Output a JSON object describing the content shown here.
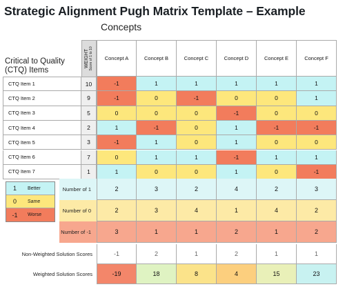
{
  "title": "Strategic Alignment Pugh Matrix Template – Example",
  "concepts_label": "Concepts",
  "ctq_label": "Critical to Quality (CTQ) Items",
  "weight_header": {
    "line1": "WEIGHT",
    "line2": "Score of 1 to 10"
  },
  "concepts": [
    "Concept A",
    "Concept B",
    "Concept C",
    "Concept D",
    "Concept E",
    "Concept F"
  ],
  "items": [
    {
      "label": "CTQ Item 1",
      "weight": "10",
      "scores": [
        "-1",
        "1",
        "1",
        "1",
        "1",
        "1"
      ]
    },
    {
      "label": "CTQ Item 2",
      "weight": "9",
      "scores": [
        "-1",
        "0",
        "-1",
        "0",
        "0",
        "1"
      ]
    },
    {
      "label": "CTQ Item 3",
      "weight": "5",
      "scores": [
        "0",
        "0",
        "0",
        "-1",
        "0",
        "0"
      ]
    },
    {
      "label": "CTQ Item 4",
      "weight": "2",
      "scores": [
        "1",
        "-1",
        "0",
        "1",
        "-1",
        "-1"
      ]
    },
    {
      "label": "CTQ Item 5",
      "weight": "3",
      "scores": [
        "-1",
        "1",
        "0",
        "1",
        "0",
        "0"
      ]
    },
    {
      "label": "CTQ Item 6",
      "weight": "7",
      "scores": [
        "0",
        "1",
        "1",
        "-1",
        "1",
        "1"
      ]
    },
    {
      "label": "CTQ Item 7",
      "weight": "1",
      "scores": [
        "1",
        "0",
        "0",
        "1",
        "0",
        "-1"
      ]
    }
  ],
  "legend": [
    {
      "value": "1",
      "label": "Better"
    },
    {
      "value": "0",
      "label": "Same"
    },
    {
      "value": "-1",
      "label": "Worse"
    }
  ],
  "summary": {
    "number_of_1": {
      "label": "Number of 1",
      "values": [
        "2",
        "3",
        "2",
        "4",
        "2",
        "3"
      ]
    },
    "number_of_0": {
      "label": "Number of 0",
      "values": [
        "2",
        "3",
        "4",
        "1",
        "4",
        "2"
      ]
    },
    "number_of_neg1": {
      "label": "Number of -1",
      "values": [
        "3",
        "1",
        "1",
        "2",
        "1",
        "2"
      ]
    },
    "non_weighted": {
      "label": "Non-Weighted Solution Scores",
      "values": [
        "-1",
        "2",
        "1",
        "2",
        "1",
        "1"
      ]
    },
    "weighted": {
      "label": "Weighted Solution Scores",
      "values": [
        "-19",
        "18",
        "8",
        "4",
        "15",
        "23"
      ]
    }
  },
  "colors": {
    "better": "#c4f3f4",
    "same": "#fde77c",
    "worse": "#f27c5c",
    "count1_bg": "#ddf6f7",
    "count0_bg": "#fdeaa6",
    "countneg_bg": "#f7a78e",
    "nonweighted_bg": "#ffffff",
    "weighted": [
      "#f3866a",
      "#dff3c2",
      "#fbe38a",
      "#fccf7e",
      "#e9f0b8",
      "#c8f2f1"
    ]
  }
}
